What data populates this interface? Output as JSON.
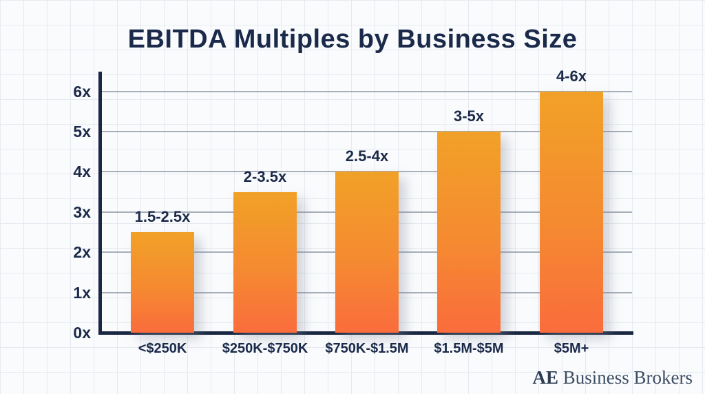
{
  "title": "EBITDA Multiples by Business Size",
  "footer": {
    "logo_bold": "AE",
    "logo_rest": " Business Brokers"
  },
  "chart_data": {
    "type": "bar",
    "title": "EBITDA Multiples by Business Size",
    "categories": [
      "<$250K",
      "$250K-$750K",
      "$750K-$1.5M",
      "$1.5M-$5M",
      "$5M+"
    ],
    "values": [
      2.5,
      3.5,
      4,
      5,
      6
    ],
    "bar_labels": [
      "1.5-2.5x",
      "2-3.5x",
      "2.5-4x",
      "3-5x",
      "4-6x"
    ],
    "ytick_labels": [
      "0x",
      "1x",
      "2x",
      "3x",
      "4x",
      "5x",
      "6x"
    ],
    "ylim": [
      0,
      6
    ],
    "xlabel": "",
    "ylabel": "",
    "grid": "horizontal-only",
    "legend": "none",
    "colors": {
      "bar_gradient_top": "#F1A127",
      "bar_gradient_bottom": "#FA6C3C",
      "axis": "#1A2742",
      "text": "#1B2A4A",
      "gridline": "#7A8697",
      "background": "#FAFBFD",
      "background_grid": "#E6EAF0",
      "logo_text": "#3D4D63"
    }
  }
}
